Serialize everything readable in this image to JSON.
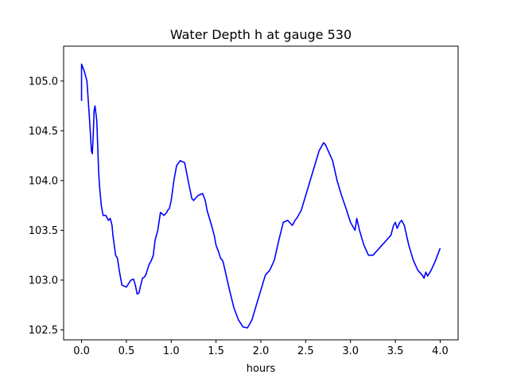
{
  "chart_data": {
    "type": "line",
    "title": "Water Depth h at gauge 530",
    "xlabel": "hours",
    "ylabel": "",
    "xlim": [
      -0.2,
      4.2
    ],
    "ylim": [
      102.4,
      105.35
    ],
    "x_ticks": [
      0.0,
      0.5,
      1.0,
      1.5,
      2.0,
      2.5,
      3.0,
      3.5,
      4.0
    ],
    "x_tick_labels": [
      "0.0",
      "0.5",
      "1.0",
      "1.5",
      "2.0",
      "2.5",
      "3.0",
      "3.5",
      "4.0"
    ],
    "y_ticks": [
      102.5,
      103.0,
      103.5,
      104.0,
      104.5,
      105.0
    ],
    "y_tick_labels": [
      "102.5",
      "103.0",
      "103.5",
      "104.0",
      "104.5",
      "105.0"
    ],
    "grid": false,
    "series": [
      {
        "color": "#0000ff",
        "x": [
          0.0,
          0.0,
          0.03,
          0.06,
          0.09,
          0.11,
          0.12,
          0.13,
          0.14,
          0.15,
          0.17,
          0.19,
          0.2,
          0.22,
          0.24,
          0.27,
          0.3,
          0.32,
          0.34,
          0.35,
          0.38,
          0.4,
          0.42,
          0.45,
          0.5,
          0.55,
          0.58,
          0.6,
          0.62,
          0.64,
          0.66,
          0.68,
          0.7,
          0.72,
          0.75,
          0.78,
          0.8,
          0.82,
          0.85,
          0.88,
          0.92,
          0.95,
          0.96,
          0.97,
          0.98,
          1.0,
          1.03,
          1.06,
          1.1,
          1.15,
          1.2,
          1.23,
          1.25,
          1.3,
          1.35,
          1.38,
          1.4,
          1.45,
          1.48,
          1.5,
          1.53,
          1.55,
          1.57,
          1.58,
          1.6,
          1.65,
          1.7,
          1.75,
          1.8,
          1.85,
          1.87,
          1.9,
          1.95,
          2.0,
          2.05,
          2.1,
          2.15,
          2.2,
          2.25,
          2.3,
          2.35,
          2.37,
          2.38,
          2.4,
          2.45,
          2.5,
          2.55,
          2.6,
          2.65,
          2.7,
          2.72,
          2.75,
          2.8,
          2.85,
          2.9,
          2.95,
          3.0,
          3.05,
          3.07,
          3.1,
          3.15,
          3.2,
          3.25,
          3.3,
          3.35,
          3.4,
          3.45,
          3.48,
          3.5,
          3.52,
          3.55,
          3.57,
          3.6,
          3.65,
          3.7,
          3.75,
          3.8,
          3.82,
          3.84,
          3.86,
          3.9,
          3.95,
          4.0
        ],
        "values": [
          104.8,
          105.17,
          105.1,
          105.0,
          104.6,
          104.3,
          104.27,
          104.45,
          104.7,
          104.75,
          104.6,
          104.1,
          103.95,
          103.75,
          103.65,
          103.65,
          103.6,
          103.62,
          103.55,
          103.45,
          103.25,
          103.22,
          103.1,
          102.95,
          102.93,
          103.0,
          103.01,
          102.95,
          102.86,
          102.87,
          102.95,
          103.02,
          103.03,
          103.06,
          103.15,
          103.2,
          103.25,
          103.4,
          103.5,
          103.68,
          103.65,
          103.68,
          103.7,
          103.71,
          103.72,
          103.8,
          104.0,
          104.15,
          104.2,
          104.18,
          103.95,
          103.82,
          103.8,
          103.85,
          103.87,
          103.8,
          103.7,
          103.55,
          103.45,
          103.35,
          103.28,
          103.22,
          103.2,
          103.18,
          103.1,
          102.9,
          102.72,
          102.6,
          102.53,
          102.52,
          102.55,
          102.6,
          102.75,
          102.9,
          103.05,
          103.1,
          103.2,
          103.4,
          103.58,
          103.6,
          103.55,
          103.58,
          103.6,
          103.62,
          103.7,
          103.85,
          104.0,
          104.15,
          104.3,
          104.38,
          104.36,
          104.3,
          104.2,
          104.0,
          103.85,
          103.72,
          103.58,
          103.5,
          103.62,
          103.5,
          103.35,
          103.25,
          103.25,
          103.3,
          103.35,
          103.4,
          103.45,
          103.55,
          103.58,
          103.52,
          103.58,
          103.6,
          103.55,
          103.35,
          103.2,
          103.1,
          103.05,
          103.02,
          103.08,
          103.04,
          103.1,
          103.2,
          103.32
        ]
      }
    ]
  }
}
